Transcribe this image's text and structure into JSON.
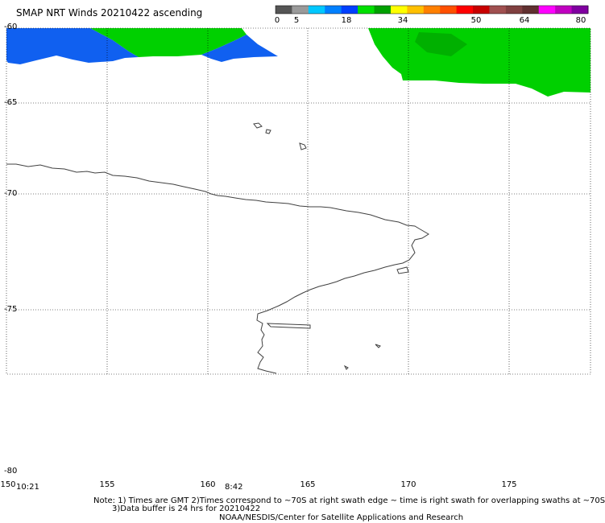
{
  "title": "SMAP NRT Winds 20210422 ascending",
  "colorbar": {
    "labels": [
      "0",
      "5",
      "18",
      "34",
      "50",
      "64",
      "80"
    ],
    "colors": [
      "#555555",
      "#9a9a9a",
      "#00c8ff",
      "#0080ff",
      "#0040ff",
      "#00e000",
      "#00a000",
      "#ffff00",
      "#ffc000",
      "#ff8000",
      "#ff5000",
      "#ff0000",
      "#c80000",
      "#a05050",
      "#804040",
      "#603030",
      "#ff00ff",
      "#c000c0",
      "#8000a0"
    ]
  },
  "map": {
    "lat_labels": [
      "-60",
      "-65",
      "-70",
      "-75",
      "-80"
    ],
    "lon_labels": [
      "150",
      "155",
      "160",
      "165",
      "170",
      "175"
    ],
    "swath_times": [
      "10:21",
      "8:42"
    ]
  },
  "footer": {
    "line1": "Note: 1) Times are GMT 2)Times correspond to ~70S at right swath edge ~ time is right swath for overlapping swaths at ~70S",
    "line2": "3)Data buffer is 24 hrs for 20210422",
    "line3": "NOAA/NESDIS/Center for Satellite Applications and Research"
  },
  "style": {
    "wind_green": "#00d000",
    "wind_blue": "#1060f0",
    "coast_color": "#404040"
  }
}
